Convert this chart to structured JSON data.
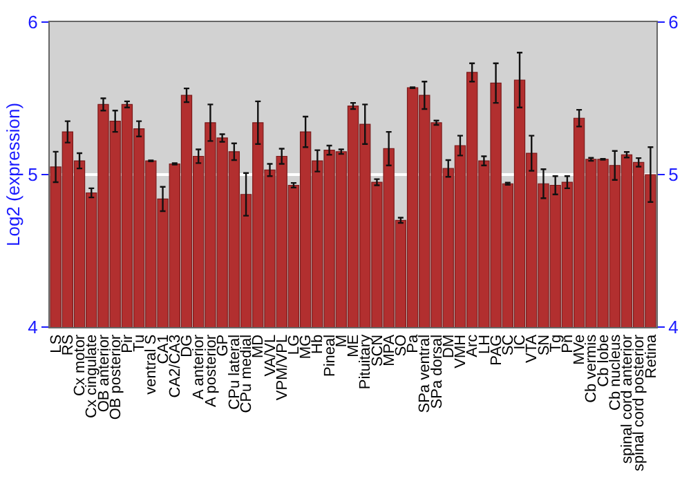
{
  "chart_data": {
    "type": "bar",
    "ylabel": "Log2 (expression)",
    "categories": [
      "LS",
      "RS",
      "Cx motor",
      "Cx cingulate",
      "OB anterior",
      "OB posterior",
      "Pir",
      "Tu",
      "ventral S",
      "CA1",
      "CA2/CA3",
      "DG",
      "A anterior",
      "A posterior",
      "GP",
      "CPu lateral",
      "CPu medial",
      "MD",
      "VA/VL",
      "VPM/VPL",
      "LG",
      "MG",
      "Hb",
      "Pineal",
      "M",
      "ME",
      "Pituitary",
      "SCN",
      "MPA",
      "SO",
      "Pa",
      "SPa ventral",
      "SPa dorsal",
      "DM",
      "VMH",
      "Arc",
      "LH",
      "PAG",
      "SC",
      "IC",
      "VTA",
      "SN",
      "Tg",
      "Pn",
      "MVe",
      "Cb vermis",
      "Cb lobe",
      "Cb nucleus",
      "spinal cord anterior",
      "spinal cord posterior",
      "Retina"
    ],
    "series": [
      {
        "color": "#b22f2f",
        "values": [
          5.05,
          5.28,
          5.09,
          4.88,
          5.46,
          5.35,
          5.46,
          5.3,
          5.09,
          4.84,
          5.07,
          5.52,
          5.12,
          5.34,
          5.24,
          5.15,
          4.87,
          5.34,
          5.03,
          5.12,
          4.93,
          5.28,
          5.09,
          5.16,
          5.15,
          5.45,
          5.33,
          4.95,
          5.17,
          4.7,
          5.57,
          5.52,
          5.34,
          5.04,
          5.19,
          5.67,
          5.09,
          5.6,
          4.94,
          5.62,
          5.14,
          4.94,
          4.93,
          4.95,
          5.37,
          5.1,
          5.1,
          5.06,
          5.13,
          5.08,
          5.0
        ],
        "errors": [
          0.1,
          0.07,
          0.05,
          0.03,
          0.04,
          0.07,
          0.02,
          0.05,
          0.003,
          0.08,
          0.005,
          0.045,
          0.045,
          0.12,
          0.025,
          0.055,
          0.14,
          0.14,
          0.04,
          0.05,
          0.015,
          0.1,
          0.07,
          0.03,
          0.015,
          0.02,
          0.13,
          0.02,
          0.11,
          0.017,
          0.003,
          0.09,
          0.014,
          0.055,
          0.065,
          0.06,
          0.03,
          0.13,
          0.007,
          0.18,
          0.115,
          0.095,
          0.06,
          0.04,
          0.055,
          0.01,
          0.003,
          0.095,
          0.018,
          0.028,
          0.18
        ]
      }
    ],
    "ylim": [
      4,
      6
    ],
    "yticks": [
      4,
      5,
      6
    ],
    "y2lim": [
      4,
      6
    ],
    "y2ticks": [
      4,
      5,
      6
    ],
    "grid": "y",
    "legend": false
  }
}
